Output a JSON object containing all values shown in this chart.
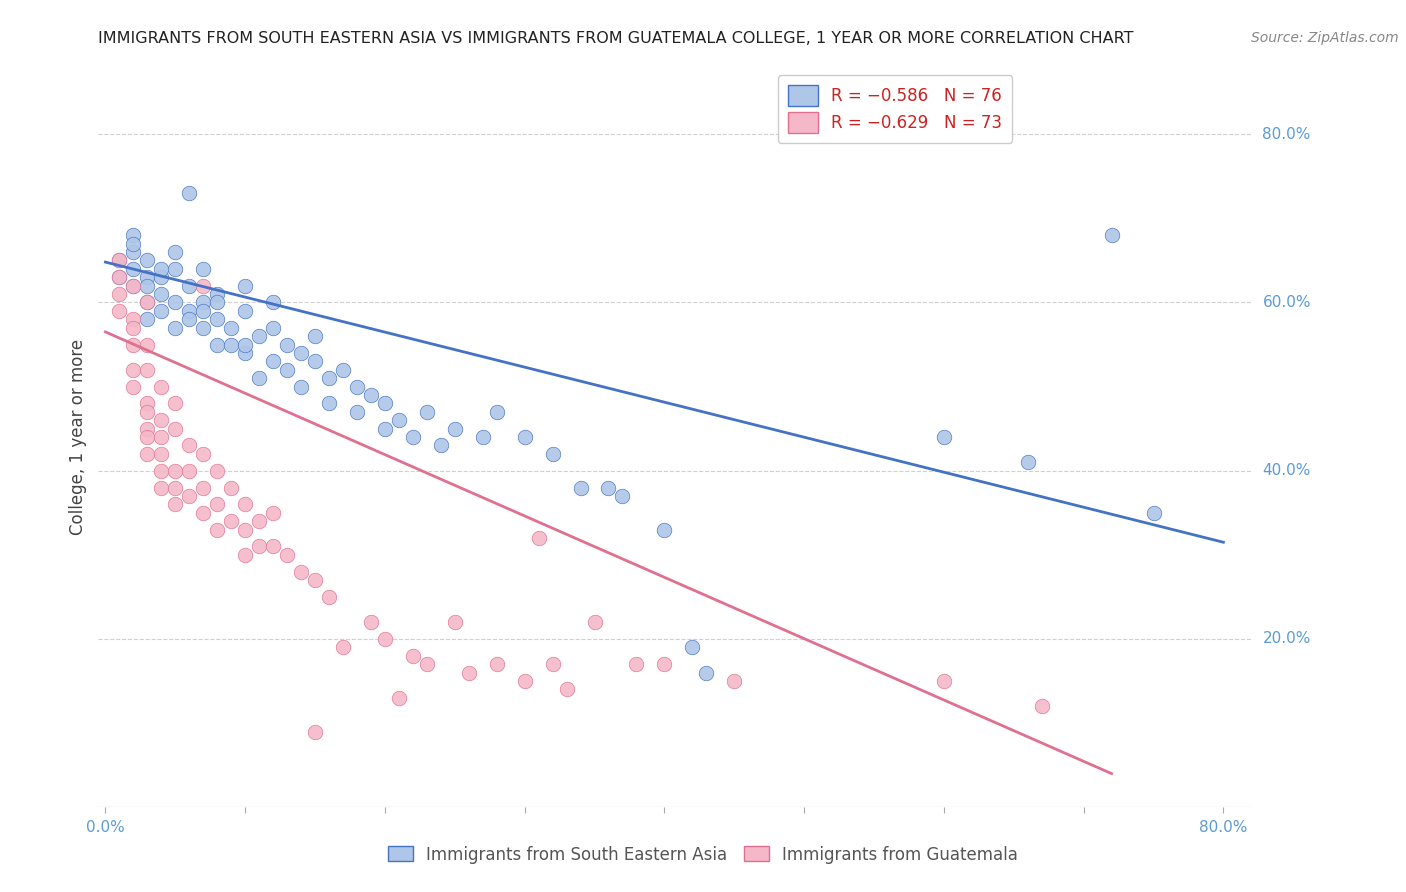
{
  "title": "IMMIGRANTS FROM SOUTH EASTERN ASIA VS IMMIGRANTS FROM GUATEMALA COLLEGE, 1 YEAR OR MORE CORRELATION CHART",
  "source": "Source: ZipAtlas.com",
  "ylabel": "College, 1 year or more",
  "ylabel_right_ticks": [
    "20.0%",
    "40.0%",
    "60.0%",
    "80.0%"
  ],
  "ylabel_right_vals": [
    0.2,
    0.4,
    0.6,
    0.8
  ],
  "legend_blue_label": "Immigrants from South Eastern Asia",
  "legend_pink_label": "Immigrants from Guatemala",
  "legend_blue_text": "R = −0.586   N = 76",
  "legend_pink_text": "R = −0.629   N = 73",
  "blue_color": "#aec6e8",
  "blue_line_color": "#4472c4",
  "pink_color": "#f4b8c8",
  "pink_line_color": "#e07090",
  "title_color": "#222222",
  "axis_color": "#5b9bd5",
  "grid_color": "#d0d0d0",
  "background_color": "#ffffff",
  "blue_scatter": [
    [
      0.01,
      0.63
    ],
    [
      0.01,
      0.65
    ],
    [
      0.02,
      0.66
    ],
    [
      0.02,
      0.64
    ],
    [
      0.02,
      0.62
    ],
    [
      0.02,
      0.68
    ],
    [
      0.02,
      0.67
    ],
    [
      0.03,
      0.63
    ],
    [
      0.03,
      0.62
    ],
    [
      0.03,
      0.6
    ],
    [
      0.03,
      0.65
    ],
    [
      0.03,
      0.58
    ],
    [
      0.04,
      0.61
    ],
    [
      0.04,
      0.63
    ],
    [
      0.04,
      0.59
    ],
    [
      0.04,
      0.64
    ],
    [
      0.05,
      0.6
    ],
    [
      0.05,
      0.57
    ],
    [
      0.05,
      0.66
    ],
    [
      0.05,
      0.64
    ],
    [
      0.06,
      0.62
    ],
    [
      0.06,
      0.59
    ],
    [
      0.06,
      0.58
    ],
    [
      0.06,
      0.73
    ],
    [
      0.07,
      0.6
    ],
    [
      0.07,
      0.57
    ],
    [
      0.07,
      0.64
    ],
    [
      0.07,
      0.59
    ],
    [
      0.08,
      0.55
    ],
    [
      0.08,
      0.58
    ],
    [
      0.08,
      0.61
    ],
    [
      0.08,
      0.6
    ],
    [
      0.09,
      0.57
    ],
    [
      0.09,
      0.55
    ],
    [
      0.1,
      0.62
    ],
    [
      0.1,
      0.59
    ],
    [
      0.1,
      0.54
    ],
    [
      0.1,
      0.55
    ],
    [
      0.11,
      0.56
    ],
    [
      0.11,
      0.51
    ],
    [
      0.12,
      0.57
    ],
    [
      0.12,
      0.53
    ],
    [
      0.12,
      0.6
    ],
    [
      0.13,
      0.55
    ],
    [
      0.13,
      0.52
    ],
    [
      0.14,
      0.54
    ],
    [
      0.14,
      0.5
    ],
    [
      0.15,
      0.53
    ],
    [
      0.15,
      0.56
    ],
    [
      0.16,
      0.51
    ],
    [
      0.16,
      0.48
    ],
    [
      0.17,
      0.52
    ],
    [
      0.18,
      0.5
    ],
    [
      0.18,
      0.47
    ],
    [
      0.19,
      0.49
    ],
    [
      0.2,
      0.48
    ],
    [
      0.2,
      0.45
    ],
    [
      0.21,
      0.46
    ],
    [
      0.22,
      0.44
    ],
    [
      0.23,
      0.47
    ],
    [
      0.24,
      0.43
    ],
    [
      0.25,
      0.45
    ],
    [
      0.27,
      0.44
    ],
    [
      0.28,
      0.47
    ],
    [
      0.3,
      0.44
    ],
    [
      0.32,
      0.42
    ],
    [
      0.34,
      0.38
    ],
    [
      0.36,
      0.38
    ],
    [
      0.37,
      0.37
    ],
    [
      0.4,
      0.33
    ],
    [
      0.42,
      0.19
    ],
    [
      0.43,
      0.16
    ],
    [
      0.6,
      0.44
    ],
    [
      0.66,
      0.41
    ],
    [
      0.72,
      0.68
    ],
    [
      0.75,
      0.35
    ]
  ],
  "pink_scatter": [
    [
      0.01,
      0.65
    ],
    [
      0.01,
      0.63
    ],
    [
      0.01,
      0.61
    ],
    [
      0.01,
      0.59
    ],
    [
      0.02,
      0.62
    ],
    [
      0.02,
      0.58
    ],
    [
      0.02,
      0.57
    ],
    [
      0.02,
      0.55
    ],
    [
      0.02,
      0.52
    ],
    [
      0.02,
      0.5
    ],
    [
      0.03,
      0.6
    ],
    [
      0.03,
      0.55
    ],
    [
      0.03,
      0.52
    ],
    [
      0.03,
      0.48
    ],
    [
      0.03,
      0.47
    ],
    [
      0.03,
      0.45
    ],
    [
      0.03,
      0.44
    ],
    [
      0.03,
      0.42
    ],
    [
      0.04,
      0.5
    ],
    [
      0.04,
      0.46
    ],
    [
      0.04,
      0.44
    ],
    [
      0.04,
      0.42
    ],
    [
      0.04,
      0.4
    ],
    [
      0.04,
      0.38
    ],
    [
      0.05,
      0.48
    ],
    [
      0.05,
      0.45
    ],
    [
      0.05,
      0.4
    ],
    [
      0.05,
      0.38
    ],
    [
      0.05,
      0.36
    ],
    [
      0.06,
      0.43
    ],
    [
      0.06,
      0.4
    ],
    [
      0.06,
      0.37
    ],
    [
      0.07,
      0.62
    ],
    [
      0.07,
      0.42
    ],
    [
      0.07,
      0.38
    ],
    [
      0.07,
      0.35
    ],
    [
      0.08,
      0.4
    ],
    [
      0.08,
      0.36
    ],
    [
      0.08,
      0.33
    ],
    [
      0.09,
      0.38
    ],
    [
      0.09,
      0.34
    ],
    [
      0.1,
      0.36
    ],
    [
      0.1,
      0.33
    ],
    [
      0.1,
      0.3
    ],
    [
      0.11,
      0.34
    ],
    [
      0.11,
      0.31
    ],
    [
      0.12,
      0.35
    ],
    [
      0.12,
      0.31
    ],
    [
      0.13,
      0.3
    ],
    [
      0.14,
      0.28
    ],
    [
      0.15,
      0.27
    ],
    [
      0.15,
      0.09
    ],
    [
      0.16,
      0.25
    ],
    [
      0.17,
      0.19
    ],
    [
      0.19,
      0.22
    ],
    [
      0.2,
      0.2
    ],
    [
      0.21,
      0.13
    ],
    [
      0.22,
      0.18
    ],
    [
      0.23,
      0.17
    ],
    [
      0.25,
      0.22
    ],
    [
      0.26,
      0.16
    ],
    [
      0.28,
      0.17
    ],
    [
      0.3,
      0.15
    ],
    [
      0.31,
      0.32
    ],
    [
      0.32,
      0.17
    ],
    [
      0.33,
      0.14
    ],
    [
      0.35,
      0.22
    ],
    [
      0.38,
      0.17
    ],
    [
      0.4,
      0.17
    ],
    [
      0.45,
      0.15
    ],
    [
      0.6,
      0.15
    ],
    [
      0.67,
      0.12
    ]
  ],
  "blue_line": [
    [
      0.0,
      0.648
    ],
    [
      0.8,
      0.315
    ]
  ],
  "pink_line": [
    [
      0.0,
      0.565
    ],
    [
      0.72,
      0.04
    ]
  ],
  "xlim": [
    -0.005,
    0.82
  ],
  "ylim": [
    0.0,
    0.88
  ],
  "x_tick_vals": [
    0.0,
    0.1,
    0.2,
    0.3,
    0.4,
    0.5,
    0.6,
    0.7,
    0.8
  ]
}
